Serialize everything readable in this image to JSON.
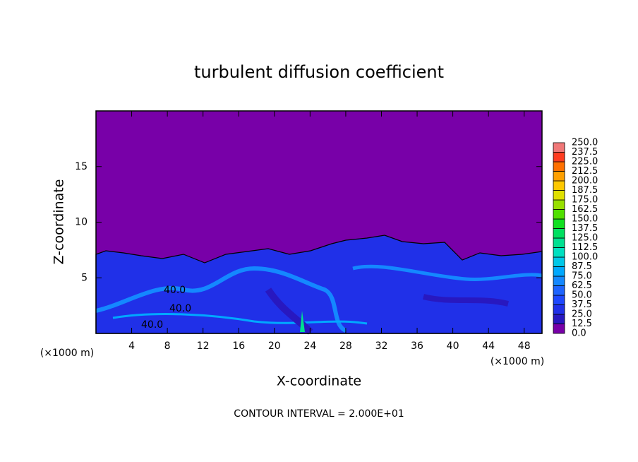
{
  "chart_data": {
    "type": "contour",
    "title": "turbulent diffusion coefficient",
    "x_label": "X-coordinate",
    "y_label": "Z-coordinate",
    "x_unit": "(×1000 m)",
    "x_unit_right": "(×1000 m)",
    "footer": "CONTOUR INTERVAL = 2.000E+01",
    "xlim": [
      0,
      50
    ],
    "xticks": [
      4,
      8,
      12,
      16,
      20,
      24,
      28,
      32,
      36,
      40,
      44,
      48
    ],
    "ylim": [
      0,
      20
    ],
    "yticks": [
      5,
      10,
      15
    ],
    "contour_labels": [
      "40.0",
      "40.0",
      "40.0"
    ],
    "colorbar": {
      "levels": [
        {
          "value": 0,
          "label": "0.0"
        },
        {
          "value": 12.5,
          "label": "12.5"
        },
        {
          "value": 25,
          "label": "25.0"
        },
        {
          "value": 37.5,
          "label": "37.5"
        },
        {
          "value": 50,
          "label": "50.0"
        },
        {
          "value": 62.5,
          "label": "62.5"
        },
        {
          "value": 75,
          "label": "75.0"
        },
        {
          "value": 87.5,
          "label": "87.5"
        },
        {
          "value": 100,
          "label": "100.0"
        },
        {
          "value": 112.5,
          "label": "112.5"
        },
        {
          "value": 125,
          "label": "125.0"
        },
        {
          "value": 137.5,
          "label": "137.5"
        },
        {
          "value": 150,
          "label": "150.0"
        },
        {
          "value": 162.5,
          "label": "162.5"
        },
        {
          "value": 175,
          "label": "175.0"
        },
        {
          "value": 187.5,
          "label": "187.5"
        },
        {
          "value": 200,
          "label": "200.0"
        },
        {
          "value": 212.5,
          "label": "212.5"
        },
        {
          "value": 225,
          "label": "225.0"
        },
        {
          "value": 237.5,
          "label": "237.5"
        },
        {
          "value": 250,
          "label": "250.0"
        }
      ],
      "colors": [
        "#7800a8",
        "#2818c0",
        "#2030e8",
        "#1e48ff",
        "#1e64ff",
        "#1488ff",
        "#00a8ff",
        "#00c8e8",
        "#00e0c0",
        "#00e090",
        "#00e060",
        "#10e020",
        "#50e000",
        "#98e000",
        "#e0e000",
        "#ffc800",
        "#ffa000",
        "#ff7000",
        "#ff3c20",
        "#f07878"
      ]
    }
  }
}
